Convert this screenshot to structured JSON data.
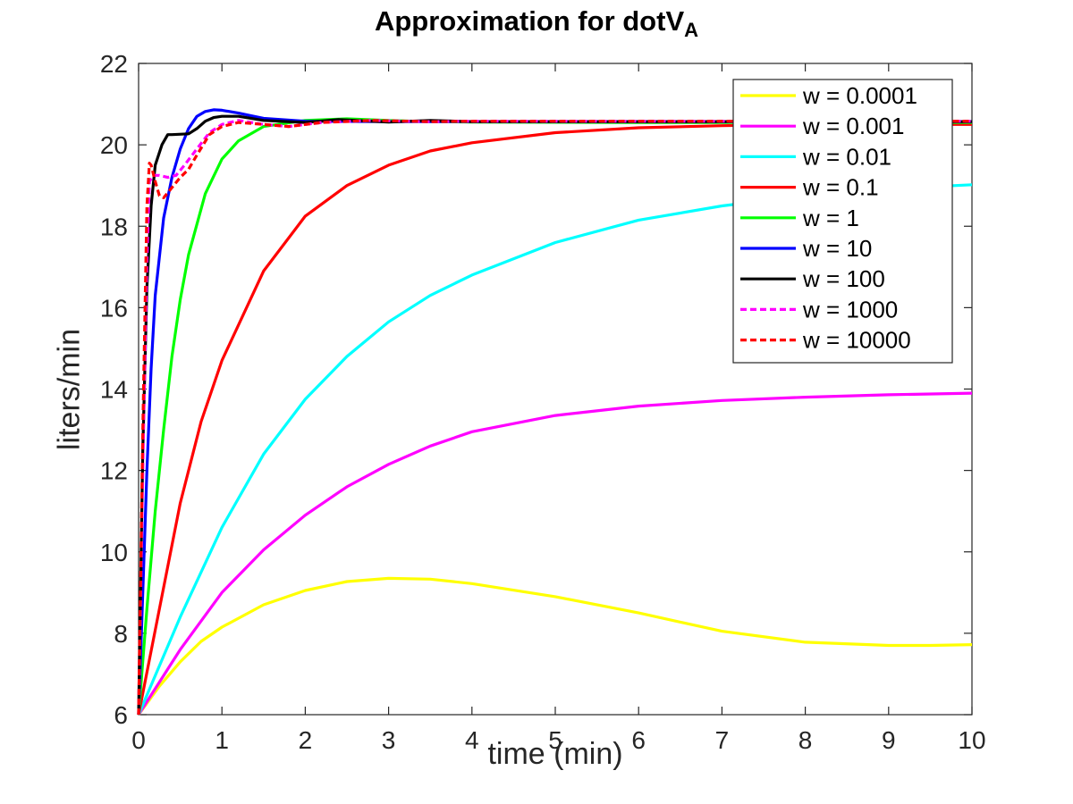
{
  "chart_data": {
    "type": "line",
    "title_main": "Approximation for dotV",
    "title_sub": "A",
    "xlabel": "time (min)",
    "ylabel": "liters/min",
    "xlim": [
      0,
      10
    ],
    "ylim": [
      6,
      22
    ],
    "xticks": [
      "0",
      "1",
      "2",
      "3",
      "4",
      "5",
      "6",
      "7",
      "8",
      "9",
      "10"
    ],
    "yticks": [
      "6",
      "8",
      "10",
      "12",
      "14",
      "16",
      "18",
      "20",
      "22"
    ],
    "grid": false,
    "legend_position": "top-right",
    "series": [
      {
        "name": "w = 0.0001",
        "color": "#ffff00",
        "dashed": false,
        "x": [
          0,
          0.25,
          0.5,
          0.75,
          1,
          1.5,
          2,
          2.5,
          3,
          3.5,
          4,
          5,
          6,
          7,
          8,
          9,
          9.5,
          10
        ],
        "y": [
          6.0,
          6.7,
          7.3,
          7.8,
          8.15,
          8.7,
          9.05,
          9.27,
          9.35,
          9.33,
          9.22,
          8.9,
          8.5,
          8.05,
          7.78,
          7.7,
          7.7,
          7.72
        ]
      },
      {
        "name": "w = 0.001",
        "color": "#ff00ff",
        "dashed": false,
        "x": [
          0,
          0.5,
          1,
          1.5,
          2,
          2.5,
          3,
          3.5,
          4,
          5,
          6,
          7,
          8,
          9,
          10
        ],
        "y": [
          6.0,
          7.6,
          9.0,
          10.05,
          10.9,
          11.6,
          12.15,
          12.6,
          12.95,
          13.35,
          13.58,
          13.72,
          13.8,
          13.86,
          13.9
        ]
      },
      {
        "name": "w = 0.01",
        "color": "#00ffff",
        "dashed": false,
        "x": [
          0,
          0.5,
          1,
          1.5,
          2,
          2.5,
          3,
          3.5,
          4,
          5,
          6,
          7,
          8,
          9,
          10
        ],
        "y": [
          6.0,
          8.4,
          10.6,
          12.4,
          13.75,
          14.8,
          15.65,
          16.3,
          16.8,
          17.6,
          18.15,
          18.5,
          18.75,
          18.92,
          19.02
        ]
      },
      {
        "name": "w = 0.1",
        "color": "#ff0000",
        "dashed": false,
        "x": [
          0,
          0.25,
          0.5,
          0.75,
          1,
          1.5,
          2,
          2.5,
          3,
          3.5,
          4,
          5,
          6,
          7,
          8,
          9,
          10
        ],
        "y": [
          6.0,
          8.6,
          11.2,
          13.2,
          14.7,
          16.9,
          18.25,
          19.0,
          19.5,
          19.85,
          20.05,
          20.3,
          20.42,
          20.47,
          20.5,
          20.5,
          20.5
        ]
      },
      {
        "name": "w = 1",
        "color": "#00ff00",
        "dashed": false,
        "x": [
          0,
          0.1,
          0.2,
          0.3,
          0.4,
          0.5,
          0.6,
          0.8,
          1,
          1.2,
          1.5,
          2,
          2.5,
          3,
          3.5,
          4,
          6,
          8,
          10
        ],
        "y": [
          6.0,
          8.6,
          11.0,
          13.0,
          14.8,
          16.2,
          17.3,
          18.8,
          19.65,
          20.1,
          20.45,
          20.6,
          20.64,
          20.6,
          20.57,
          20.56,
          20.55,
          20.55,
          20.55
        ]
      },
      {
        "name": "w = 10",
        "color": "#0000ff",
        "dashed": false,
        "x": [
          0,
          0.05,
          0.1,
          0.15,
          0.2,
          0.3,
          0.4,
          0.5,
          0.6,
          0.7,
          0.8,
          0.9,
          1,
          1.2,
          1.5,
          2,
          3,
          4,
          6,
          8,
          10
        ],
        "y": [
          6.0,
          9.0,
          12.0,
          14.5,
          16.3,
          18.2,
          19.2,
          19.9,
          20.4,
          20.7,
          20.82,
          20.86,
          20.85,
          20.78,
          20.65,
          20.58,
          20.57,
          20.57,
          20.57,
          20.57,
          20.57
        ]
      },
      {
        "name": "w = 100",
        "color": "#000000",
        "dashed": false,
        "x": [
          0,
          0.05,
          0.1,
          0.15,
          0.2,
          0.28,
          0.35,
          0.4,
          0.6,
          0.7,
          0.8,
          0.9,
          1,
          1.2,
          1.5,
          2,
          2.4,
          3,
          3.5,
          4,
          6,
          8,
          10
        ],
        "y": [
          6.0,
          12.5,
          16.5,
          18.5,
          19.5,
          20.0,
          20.25,
          20.25,
          20.27,
          20.4,
          20.58,
          20.67,
          20.7,
          20.7,
          20.6,
          20.55,
          20.62,
          20.56,
          20.6,
          20.57,
          20.57,
          20.57,
          20.57
        ]
      },
      {
        "name": "w = 1000",
        "color": "#ff00ff",
        "dashed": true,
        "x": [
          0,
          0.05,
          0.1,
          0.13,
          0.18,
          0.25,
          0.35,
          0.45,
          0.55,
          0.7,
          0.85,
          1,
          1.2,
          1.5,
          1.8,
          2.2,
          2.8,
          3.5,
          4,
          6,
          8,
          10
        ],
        "y": [
          6.0,
          12.0,
          17.2,
          19.1,
          19.25,
          19.25,
          19.2,
          19.25,
          19.5,
          19.9,
          20.3,
          20.5,
          20.6,
          20.5,
          20.45,
          20.55,
          20.6,
          20.57,
          20.58,
          20.58,
          20.58,
          20.58
        ]
      },
      {
        "name": "w = 10000",
        "color": "#ff0000",
        "dashed": true,
        "x": [
          0,
          0.05,
          0.1,
          0.13,
          0.15,
          0.2,
          0.25,
          0.3,
          0.4,
          0.5,
          0.6,
          0.7,
          0.85,
          1,
          1.2,
          1.5,
          1.8,
          2.2,
          2.8,
          3.5,
          4,
          6,
          8,
          10
        ],
        "y": [
          6.0,
          13.0,
          18.5,
          19.55,
          19.5,
          19.1,
          18.75,
          18.7,
          18.95,
          19.2,
          19.4,
          19.75,
          20.25,
          20.45,
          20.55,
          20.5,
          20.45,
          20.55,
          20.6,
          20.57,
          20.58,
          20.58,
          20.58,
          20.58
        ]
      }
    ]
  }
}
